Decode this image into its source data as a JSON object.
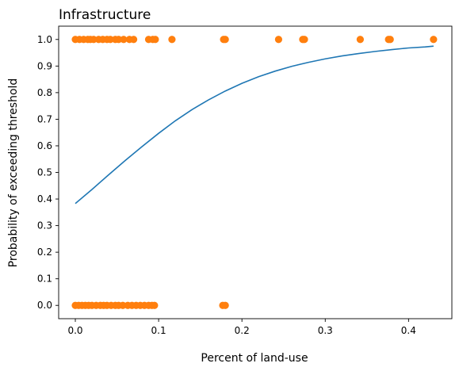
{
  "chart_data": {
    "type": "scatter",
    "title": "Infrastructure",
    "xlabel": "Percent of land-use",
    "ylabel": "Probability of exceeding threshold",
    "xlim": [
      -0.02,
      0.452
    ],
    "ylim": [
      -0.05,
      1.05
    ],
    "x_ticks": [
      0.0,
      0.1,
      0.2,
      0.3,
      0.4
    ],
    "x_tick_labels": [
      "0.0",
      "0.1",
      "0.2",
      "0.3",
      "0.4"
    ],
    "y_ticks": [
      0.0,
      0.1,
      0.2,
      0.3,
      0.4,
      0.5,
      0.6,
      0.7,
      0.8,
      0.9,
      1.0
    ],
    "y_tick_labels": [
      "0.0",
      "0.1",
      "0.2",
      "0.3",
      "0.4",
      "0.5",
      "0.6",
      "0.7",
      "0.8",
      "0.9",
      "1.0"
    ],
    "grid": false,
    "legend": "none",
    "colors": {
      "points": "#ff7f0e",
      "curve": "#1f77b4"
    },
    "series": [
      {
        "kind": "scatter",
        "points": [
          [
            0.0,
            1
          ],
          [
            0.005,
            1
          ],
          [
            0.01,
            1
          ],
          [
            0.015,
            1
          ],
          [
            0.018,
            1
          ],
          [
            0.022,
            1
          ],
          [
            0.028,
            1
          ],
          [
            0.033,
            1
          ],
          [
            0.038,
            1
          ],
          [
            0.042,
            1
          ],
          [
            0.048,
            1
          ],
          [
            0.052,
            1
          ],
          [
            0.058,
            1
          ],
          [
            0.065,
            1
          ],
          [
            0.07,
            1
          ],
          [
            0.088,
            1
          ],
          [
            0.093,
            1
          ],
          [
            0.096,
            1
          ],
          [
            0.116,
            1
          ],
          [
            0.178,
            1
          ],
          [
            0.18,
            1
          ],
          [
            0.244,
            1
          ],
          [
            0.273,
            1
          ],
          [
            0.275,
            1
          ],
          [
            0.342,
            1
          ],
          [
            0.376,
            1
          ],
          [
            0.378,
            1
          ],
          [
            0.43,
            1
          ],
          [
            0.0,
            0
          ],
          [
            0.004,
            0
          ],
          [
            0.008,
            0
          ],
          [
            0.012,
            0
          ],
          [
            0.016,
            0
          ],
          [
            0.02,
            0
          ],
          [
            0.025,
            0
          ],
          [
            0.03,
            0
          ],
          [
            0.034,
            0
          ],
          [
            0.038,
            0
          ],
          [
            0.043,
            0
          ],
          [
            0.048,
            0
          ],
          [
            0.052,
            0
          ],
          [
            0.057,
            0
          ],
          [
            0.063,
            0
          ],
          [
            0.068,
            0
          ],
          [
            0.073,
            0
          ],
          [
            0.078,
            0
          ],
          [
            0.083,
            0
          ],
          [
            0.088,
            0
          ],
          [
            0.092,
            0
          ],
          [
            0.095,
            0
          ],
          [
            0.177,
            0
          ],
          [
            0.18,
            0
          ]
        ]
      },
      {
        "kind": "line",
        "x": [
          0.0,
          0.02,
          0.04,
          0.06,
          0.08,
          0.1,
          0.12,
          0.14,
          0.16,
          0.18,
          0.2,
          0.22,
          0.24,
          0.26,
          0.28,
          0.3,
          0.32,
          0.34,
          0.36,
          0.38,
          0.4,
          0.42,
          0.43
        ],
        "y": [
          0.383,
          0.436,
          0.491,
          0.545,
          0.597,
          0.647,
          0.694,
          0.736,
          0.773,
          0.806,
          0.835,
          0.86,
          0.881,
          0.899,
          0.914,
          0.927,
          0.938,
          0.947,
          0.955,
          0.962,
          0.968,
          0.972,
          0.975
        ]
      }
    ]
  }
}
